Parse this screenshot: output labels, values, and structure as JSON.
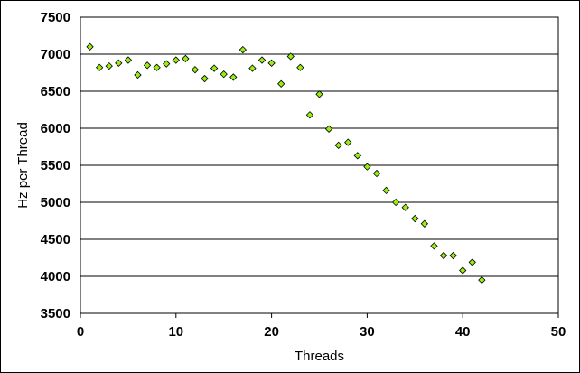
{
  "chart_data": {
    "type": "scatter",
    "xlabel": "Threads",
    "ylabel": "Hz per Thread",
    "xlim": [
      0,
      50
    ],
    "ylim": [
      3500,
      7500
    ],
    "xticks": [
      "0",
      "10",
      "20",
      "30",
      "40",
      "50"
    ],
    "yticks": [
      "3500",
      "4000",
      "4500",
      "5000",
      "5500",
      "6000",
      "6500",
      "7000",
      "7500"
    ],
    "grid": "horizontal",
    "legend": "none",
    "marker_color": "#99ee11",
    "marker_stroke": "#000000",
    "series": [
      {
        "x": [
          1,
          2,
          3,
          4,
          5,
          6,
          7,
          8,
          9,
          10,
          11,
          12,
          13,
          14,
          15,
          16,
          17,
          18,
          19,
          20,
          21,
          22,
          23,
          24,
          25,
          26,
          27,
          28,
          29,
          30,
          31,
          32,
          33,
          34,
          35,
          36,
          37,
          38,
          39,
          40,
          41,
          42
        ],
        "y": [
          7100,
          6820,
          6840,
          6880,
          6920,
          6720,
          6850,
          6820,
          6870,
          6920,
          6940,
          6790,
          6670,
          6810,
          6730,
          6690,
          7060,
          6810,
          6920,
          6880,
          6600,
          6970,
          6820,
          6180,
          6460,
          5990,
          5770,
          5810,
          5630,
          5480,
          5390,
          5160,
          5000,
          4930,
          4780,
          4710,
          4410,
          4280,
          4280,
          4080,
          4190,
          3950
        ]
      }
    ]
  }
}
